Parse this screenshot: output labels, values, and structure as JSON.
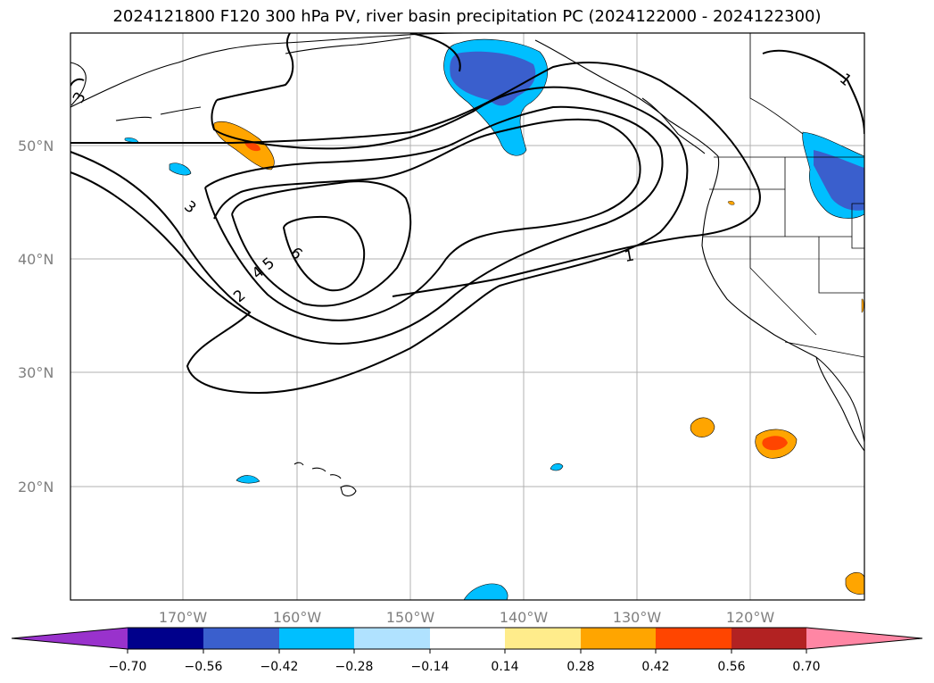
{
  "title": "2024121800 F120 300 hPa PV, river basin precipitation PC (2024122000 - 2024122300)",
  "map": {
    "lat_labels": [
      "50°N",
      "40°N",
      "30°N",
      "20°N"
    ],
    "lon_labels": [
      "170°W",
      "160°W",
      "150°W",
      "140°W",
      "130°W",
      "120°W"
    ],
    "contour_labels": [
      "1",
      "1",
      "2",
      "3",
      "3",
      "4",
      "5",
      "6"
    ]
  },
  "colorbar": {
    "tick_labels": [
      "−0.70",
      "−0.56",
      "−0.42",
      "−0.28",
      "−0.14",
      "0.14",
      "0.28",
      "0.42",
      "0.56",
      "0.70"
    ],
    "colors": [
      "#9932cc",
      "#00008b",
      "#3a5fcd",
      "#00bfff",
      "#b0e2ff",
      "#ffffff",
      "#ffec8b",
      "#ffa500",
      "#ff4500",
      "#b22222",
      "#ff86a4"
    ]
  }
}
